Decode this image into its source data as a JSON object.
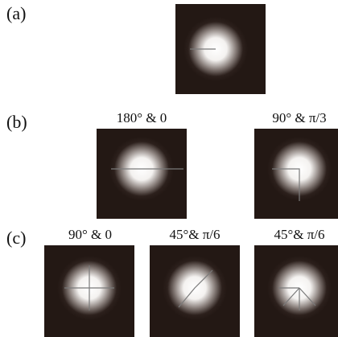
{
  "panels": [
    {
      "label": "(a)",
      "title": null
    },
    {
      "label": "(b)",
      "titles": [
        "180° & 0",
        "90° & π/3"
      ]
    },
    {
      "label": "(c)",
      "titles": [
        "90° & 0",
        "45°& π/6",
        "45°& π/6"
      ]
    }
  ]
}
